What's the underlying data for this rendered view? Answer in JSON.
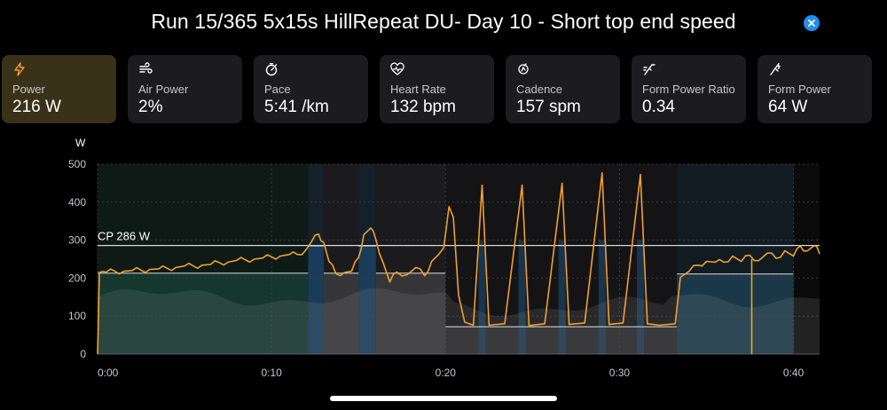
{
  "title": "Run 15/365 5x15s HillRepeat DU- Day 10 - Short top end speed",
  "metrics": [
    {
      "label": "Power",
      "value": "216 W",
      "icon": "lightning-icon",
      "active": true
    },
    {
      "label": "Air Power",
      "value": "2%",
      "icon": "wind-icon",
      "active": false
    },
    {
      "label": "Pace",
      "value": "5:41 /km",
      "icon": "stopwatch-icon",
      "active": false
    },
    {
      "label": "Heart Rate",
      "value": "132 bpm",
      "icon": "heart-pulse-icon",
      "active": false
    },
    {
      "label": "Cadence",
      "value": "157 spm",
      "icon": "cadence-icon",
      "active": false
    },
    {
      "label": "Form Power Ratio",
      "value": "0.34",
      "icon": "form-ratio-icon",
      "active": false
    },
    {
      "label": "Form Power",
      "value": "64 W",
      "icon": "form-power-icon",
      "active": false
    }
  ],
  "colors": {
    "accent": "#f0a030",
    "power_line": "#f0a030",
    "active_card": "#3a3119",
    "close": "#1f8ff0",
    "zone_green": "#163b31",
    "zone_blue": "#1b3f5e",
    "zone_gray": "#3a3a3c"
  },
  "chart_data": {
    "type": "line",
    "ylabel": "W",
    "ylim": [
      0,
      500
    ],
    "yticks": [
      0,
      100,
      200,
      300,
      400,
      500
    ],
    "xlim": [
      0,
      41.5
    ],
    "xticks": [
      0,
      10,
      20,
      30,
      40
    ],
    "xtick_labels": [
      "0:00",
      "0:10",
      "0:20",
      "0:30",
      "0:40"
    ],
    "cp": {
      "label": "CP 286 W",
      "value": 286
    },
    "intervals": [
      {
        "start": 0,
        "end": 12.1,
        "avg": 213,
        "zone": "green"
      },
      {
        "start": 12.1,
        "end": 13.0,
        "avg": 285,
        "zone": "blue"
      },
      {
        "start": 13.0,
        "end": 15.0,
        "avg": 213,
        "zone": "gray"
      },
      {
        "start": 15.0,
        "end": 16.0,
        "avg": 285,
        "zone": "blue"
      },
      {
        "start": 16.0,
        "end": 20.0,
        "avg": 213,
        "zone": "gray"
      },
      {
        "start": 20.0,
        "end": 33.3,
        "avg": 72,
        "zone": "darkgray"
      },
      {
        "start": 33.3,
        "end": 40.0,
        "avg": 211,
        "zone": "teal"
      }
    ],
    "spikes": [
      22.1,
      24.4,
      26.7,
      29.0,
      31.2
    ],
    "series": [
      {
        "values": [
          [
            0.0,
            0
          ],
          [
            0.1,
            215
          ],
          [
            0.5,
            220
          ],
          [
            1.0,
            214
          ],
          [
            1.5,
            222
          ],
          [
            2.0,
            216
          ],
          [
            2.5,
            225
          ],
          [
            3.0,
            219
          ],
          [
            3.5,
            228
          ],
          [
            4.0,
            222
          ],
          [
            4.5,
            232
          ],
          [
            5.0,
            228
          ],
          [
            5.5,
            236
          ],
          [
            6.0,
            230
          ],
          [
            6.5,
            240
          ],
          [
            7.0,
            237
          ],
          [
            7.5,
            246
          ],
          [
            8.0,
            243
          ],
          [
            8.5,
            252
          ],
          [
            9.0,
            246
          ],
          [
            9.5,
            257
          ],
          [
            10.0,
            252
          ],
          [
            10.5,
            262
          ],
          [
            11.0,
            258
          ],
          [
            11.5,
            266
          ],
          [
            12.0,
            272
          ],
          [
            12.3,
            300
          ],
          [
            12.7,
            312
          ],
          [
            13.0,
            298
          ],
          [
            13.3,
            240
          ],
          [
            13.7,
            216
          ],
          [
            14.2,
            211
          ],
          [
            14.6,
            222
          ],
          [
            15.0,
            250
          ],
          [
            15.3,
            318
          ],
          [
            15.7,
            328
          ],
          [
            16.0,
            305
          ],
          [
            16.4,
            238
          ],
          [
            16.8,
            194
          ],
          [
            17.2,
            212
          ],
          [
            17.8,
            213
          ],
          [
            18.3,
            224
          ],
          [
            18.8,
            210
          ],
          [
            19.2,
            240
          ],
          [
            19.6,
            266
          ],
          [
            19.9,
            276
          ],
          [
            20.2,
            388
          ],
          [
            20.45,
            360
          ],
          [
            20.75,
            155
          ],
          [
            21.1,
            84
          ],
          [
            21.6,
            76
          ],
          [
            22.1,
            445
          ],
          [
            22.5,
            76
          ],
          [
            23.4,
            80
          ],
          [
            24.4,
            445
          ],
          [
            24.8,
            75
          ],
          [
            25.7,
            80
          ],
          [
            26.7,
            450
          ],
          [
            27.1,
            78
          ],
          [
            28.0,
            82
          ],
          [
            29.0,
            477
          ],
          [
            29.4,
            78
          ],
          [
            30.2,
            82
          ],
          [
            31.2,
            473
          ],
          [
            31.6,
            80
          ],
          [
            32.3,
            76
          ],
          [
            33.2,
            80
          ],
          [
            33.5,
            198
          ],
          [
            34.0,
            222
          ],
          [
            34.5,
            230
          ],
          [
            35.0,
            248
          ],
          [
            35.5,
            238
          ],
          [
            36.0,
            246
          ],
          [
            36.5,
            254
          ],
          [
            37.0,
            248
          ],
          [
            37.5,
            256
          ],
          [
            38.0,
            250
          ],
          [
            38.5,
            262
          ],
          [
            39.0,
            256
          ],
          [
            39.5,
            268
          ],
          [
            40.0,
            262
          ],
          [
            40.4,
            280
          ],
          [
            40.8,
            276
          ],
          [
            41.2,
            282
          ],
          [
            41.5,
            268
          ]
        ]
      }
    ]
  }
}
